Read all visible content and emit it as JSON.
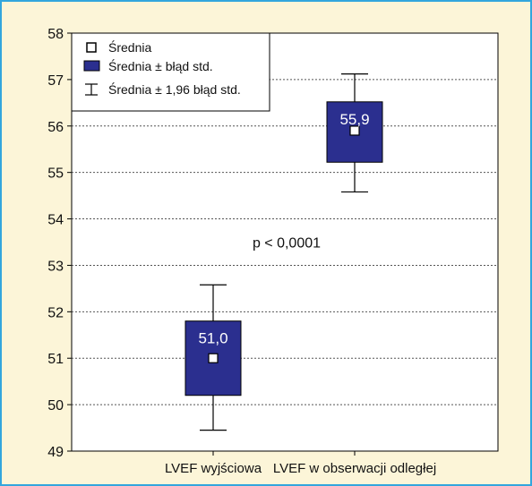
{
  "chart_data": {
    "type": "box",
    "yticks": [
      "49",
      "50",
      "51",
      "52",
      "53",
      "54",
      "55",
      "56",
      "57",
      "58"
    ],
    "ylim": [
      49,
      58
    ],
    "grid": true,
    "categories": [
      "LVEF wyjściowa",
      "LVEF w obserwacji odległej"
    ],
    "boxes": [
      {
        "category": "LVEF wyjściowa",
        "mean": 51.0,
        "se_low": 50.2,
        "se_high": 51.8,
        "ci_low": 49.45,
        "ci_high": 52.58,
        "label": "51,0"
      },
      {
        "category": "LVEF w obserwacji odległej",
        "mean": 55.9,
        "se_low": 55.22,
        "se_high": 56.52,
        "ci_low": 54.58,
        "ci_high": 57.12,
        "label": "55,9"
      }
    ],
    "legend": {
      "placement": "top-left",
      "items": [
        "Średnia",
        "Średnia ± błąd std.",
        "Średnia ± 1,96 błąd std."
      ]
    },
    "annotation": "p < 0,0001",
    "colors": {
      "box_fill": "#2b2f8f",
      "box_stroke": "#000000",
      "background": "#fcf5d8",
      "plot_bg": "#ffffff",
      "frame": "#33a6dd"
    }
  }
}
